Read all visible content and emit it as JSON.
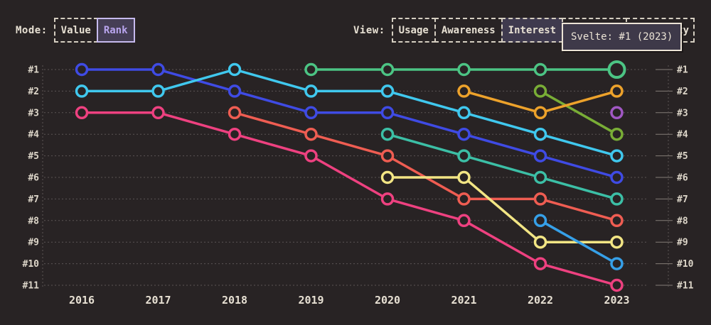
{
  "page": {
    "background": "#282324",
    "text_color": "#e7e0d3"
  },
  "mode": {
    "label": "Mode:",
    "options": [
      {
        "label": "Value",
        "active": false
      },
      {
        "label": "Rank",
        "active": true
      }
    ],
    "active_bg": "#453e55",
    "active_text": "#b9a5ee"
  },
  "view": {
    "label": "View:",
    "options": [
      {
        "label": "Usage",
        "active": false
      },
      {
        "label": "Awareness",
        "active": false
      },
      {
        "label": "Interest",
        "active": true
      },
      {
        "label": "",
        "active": false,
        "placeholder": true
      },
      {
        "label": "ty",
        "active": false,
        "clipped": true
      }
    ],
    "active_bg": "#3f3a4e"
  },
  "tooltip": {
    "text": "Svelte: #1 (2023)",
    "bg": "#3e3949",
    "border": "#ece4d6"
  },
  "chart_data": {
    "type": "line",
    "variant": "rank-bump",
    "title": "",
    "xlabel": "",
    "ylabel": "",
    "x": [
      2016,
      2017,
      2018,
      2019,
      2020,
      2021,
      2022,
      2023
    ],
    "rank_labels": [
      "#1",
      "#2",
      "#3",
      "#4",
      "#5",
      "#6",
      "#7",
      "#8",
      "#9",
      "#10",
      "#11"
    ],
    "ylim": [
      1,
      11
    ],
    "y_axis_inverted": true,
    "grid": "dotted-horizontal",
    "legend": "none",
    "series": [
      {
        "name": "series-blue",
        "color": "#3f4be4",
        "ranks": [
          1,
          1,
          2,
          3,
          3,
          4,
          5,
          6
        ]
      },
      {
        "name": "series-cyan",
        "color": "#40c8ee",
        "ranks": [
          2,
          2,
          1,
          2,
          2,
          3,
          4,
          5
        ]
      },
      {
        "name": "series-pink",
        "color": "#ee4180",
        "ranks": [
          3,
          3,
          4,
          5,
          7,
          8,
          10,
          11
        ]
      },
      {
        "name": "series-salmon",
        "color": "#ef5d52",
        "ranks": [
          null,
          null,
          3,
          4,
          5,
          7,
          7,
          8
        ]
      },
      {
        "name": "Svelte",
        "color": "#4cc484",
        "ranks": [
          null,
          null,
          null,
          1,
          1,
          1,
          1,
          1
        ]
      },
      {
        "name": "series-teal",
        "color": "#3cbfa6",
        "ranks": [
          null,
          null,
          null,
          null,
          4,
          5,
          6,
          7
        ]
      },
      {
        "name": "series-yellow",
        "color": "#f2e584",
        "ranks": [
          null,
          null,
          null,
          null,
          6,
          6,
          9,
          9
        ]
      },
      {
        "name": "series-olive",
        "color": "#79ad36",
        "ranks": [
          null,
          null,
          null,
          null,
          null,
          null,
          2,
          4
        ]
      },
      {
        "name": "series-orange",
        "color": "#eda22b",
        "ranks": [
          null,
          null,
          null,
          null,
          null,
          2,
          3,
          2
        ]
      },
      {
        "name": "series-lightblue",
        "color": "#36a0e8",
        "ranks": [
          null,
          null,
          null,
          null,
          null,
          null,
          8,
          10
        ]
      },
      {
        "name": "series-purple",
        "color": "#a158c4",
        "ranks": [
          null,
          null,
          null,
          null,
          null,
          null,
          null,
          3
        ]
      }
    ],
    "highlight": {
      "series": "Svelte",
      "year": 2023,
      "rank": 1
    }
  }
}
